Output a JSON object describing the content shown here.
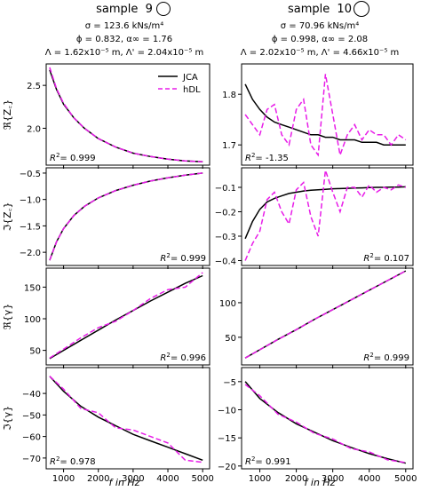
{
  "columns": [
    {
      "title": "sample",
      "number": "9",
      "params_line1": "σ = 123.6 kNs/m⁴",
      "params_line2": "ϕ = 0.832, α∞ = 1.76",
      "params_line3": "Λ = 1.62x10⁻⁵ m, Λ' = 2.04x10⁻⁵ m"
    },
    {
      "title": "sample",
      "number": "10",
      "params_line1": "σ = 70.96 kNs/m⁴",
      "params_line2": "ϕ = 0.998, α∞ = 2.08",
      "params_line3": "Λ = 2.02x10⁻⁵ m, Λ' = 4.66x10⁻⁵ m"
    }
  ],
  "xlabel": "f in Hz",
  "legend": {
    "items": [
      {
        "label": "JCA"
      },
      {
        "label": "hDL"
      }
    ],
    "placement": "upper-right of top-left panel"
  },
  "colors": {
    "JCA": "#000000",
    "hDL": "#e81ce8"
  },
  "chart_data": [
    {
      "type": "line",
      "panel": "ReZc-sample9",
      "ylabel": "ℜ{Z꜀}",
      "xlim": [
        500,
        5200
      ],
      "ylim": [
        1.57,
        2.75
      ],
      "xticks": [
        1000,
        2000,
        3000,
        4000,
        5000
      ],
      "yticks": [
        2.0,
        2.5
      ],
      "r2": "0.999",
      "r2_pos": "bottom-left",
      "x": [
        600,
        800,
        1000,
        1300,
        1600,
        2000,
        2500,
        3000,
        3500,
        4000,
        4500,
        5000
      ],
      "series": [
        {
          "name": "JCA",
          "values": [
            2.68,
            2.45,
            2.28,
            2.12,
            2.0,
            1.88,
            1.78,
            1.71,
            1.67,
            1.64,
            1.62,
            1.61
          ]
        },
        {
          "name": "hDL",
          "values": [
            2.71,
            2.46,
            2.29,
            2.12,
            2.0,
            1.88,
            1.78,
            1.71,
            1.67,
            1.64,
            1.62,
            1.61
          ]
        }
      ]
    },
    {
      "type": "line",
      "panel": "ReZc-sample10",
      "ylabel": "",
      "xlim": [
        500,
        5200
      ],
      "ylim": [
        1.66,
        1.86
      ],
      "xticks": [
        1000,
        2000,
        3000,
        4000,
        5000
      ],
      "yticks": [
        1.7,
        1.8
      ],
      "r2": "-1.35",
      "r2_pos": "bottom-left",
      "x": [
        600,
        800,
        1000,
        1200,
        1400,
        1600,
        1800,
        2000,
        2200,
        2400,
        2600,
        2800,
        3000,
        3200,
        3400,
        3600,
        3800,
        4000,
        4200,
        4400,
        4600,
        4800,
        5000
      ],
      "series": [
        {
          "name": "JCA",
          "values": [
            1.82,
            1.79,
            1.77,
            1.755,
            1.745,
            1.74,
            1.735,
            1.73,
            1.725,
            1.72,
            1.72,
            1.715,
            1.715,
            1.71,
            1.71,
            1.71,
            1.705,
            1.705,
            1.705,
            1.7,
            1.7,
            1.7,
            1.7
          ]
        },
        {
          "name": "hDL",
          "values": [
            1.76,
            1.74,
            1.72,
            1.77,
            1.78,
            1.72,
            1.7,
            1.77,
            1.79,
            1.7,
            1.68,
            1.84,
            1.76,
            1.68,
            1.72,
            1.74,
            1.71,
            1.73,
            1.72,
            1.72,
            1.7,
            1.72,
            1.71
          ]
        }
      ]
    },
    {
      "type": "line",
      "panel": "ImZc-sample9",
      "ylabel": "ℑ{Z꜀}",
      "xlim": [
        500,
        5200
      ],
      "ylim": [
        -2.25,
        -0.4
      ],
      "xticks": [
        1000,
        2000,
        3000,
        4000,
        5000
      ],
      "yticks": [
        -2.0,
        -1.5,
        -1.0,
        -0.5
      ],
      "r2": "0.999",
      "r2_pos": "bottom-right",
      "x": [
        600,
        800,
        1000,
        1300,
        1600,
        2000,
        2500,
        3000,
        3500,
        4000,
        4500,
        5000
      ],
      "series": [
        {
          "name": "JCA",
          "values": [
            -2.15,
            -1.8,
            -1.55,
            -1.3,
            -1.13,
            -0.97,
            -0.83,
            -0.73,
            -0.65,
            -0.59,
            -0.54,
            -0.5
          ]
        },
        {
          "name": "hDL",
          "values": [
            -2.15,
            -1.8,
            -1.55,
            -1.3,
            -1.13,
            -0.97,
            -0.83,
            -0.73,
            -0.65,
            -0.59,
            -0.54,
            -0.5
          ]
        }
      ]
    },
    {
      "type": "line",
      "panel": "ImZc-sample10",
      "ylabel": "",
      "xlim": [
        500,
        5200
      ],
      "ylim": [
        -0.42,
        -0.02
      ],
      "xticks": [
        1000,
        2000,
        3000,
        4000,
        5000
      ],
      "yticks": [
        -0.4,
        -0.3,
        -0.2,
        -0.1
      ],
      "r2": "0.107",
      "r2_pos": "bottom-right",
      "x": [
        600,
        800,
        1000,
        1200,
        1400,
        1600,
        1800,
        2000,
        2200,
        2400,
        2600,
        2800,
        3000,
        3200,
        3400,
        3600,
        3800,
        4000,
        4200,
        4400,
        4600,
        4800,
        5000
      ],
      "series": [
        {
          "name": "JCA",
          "values": [
            -0.31,
            -0.24,
            -0.19,
            -0.16,
            -0.145,
            -0.135,
            -0.125,
            -0.12,
            -0.115,
            -0.112,
            -0.11,
            -0.108,
            -0.106,
            -0.105,
            -0.104,
            -0.103,
            -0.102,
            -0.101,
            -0.1,
            -0.1,
            -0.099,
            -0.099,
            -0.098
          ]
        },
        {
          "name": "hDL",
          "values": [
            -0.4,
            -0.33,
            -0.28,
            -0.15,
            -0.12,
            -0.2,
            -0.25,
            -0.11,
            -0.08,
            -0.22,
            -0.3,
            -0.03,
            -0.12,
            -0.2,
            -0.1,
            -0.1,
            -0.14,
            -0.09,
            -0.12,
            -0.1,
            -0.11,
            -0.09,
            -0.1
          ]
        }
      ]
    },
    {
      "type": "line",
      "panel": "Regamma-sample9",
      "ylabel": "ℜ{γ}",
      "xlim": [
        500,
        5200
      ],
      "ylim": [
        27,
        180
      ],
      "xticks": [
        1000,
        2000,
        3000,
        4000,
        5000
      ],
      "yticks": [
        50,
        100,
        150
      ],
      "r2": "0.996",
      "r2_pos": "bottom-right",
      "x": [
        600,
        1000,
        1500,
        2000,
        2500,
        3000,
        3500,
        4000,
        4500,
        5000
      ],
      "series": [
        {
          "name": "JCA",
          "values": [
            37,
            50,
            66,
            82,
            98,
            113,
            128,
            142,
            156,
            168
          ]
        },
        {
          "name": "hDL",
          "values": [
            38,
            52,
            70,
            86,
            96,
            113,
            132,
            146,
            150,
            173
          ]
        }
      ]
    },
    {
      "type": "line",
      "panel": "Regamma-sample10",
      "ylabel": "",
      "xlim": [
        500,
        5200
      ],
      "ylim": [
        10,
        150
      ],
      "xticks": [
        1000,
        2000,
        3000,
        4000,
        5000
      ],
      "yticks": [
        50,
        100
      ],
      "r2": "0.999",
      "r2_pos": "bottom-right",
      "x": [
        600,
        1000,
        1500,
        2000,
        2500,
        3000,
        3500,
        4000,
        4500,
        5000
      ],
      "series": [
        {
          "name": "JCA",
          "values": [
            20,
            32,
            47,
            61,
            76,
            90,
            104,
            118,
            132,
            146
          ]
        },
        {
          "name": "hDL",
          "values": [
            20,
            32,
            47,
            61,
            76,
            90,
            104,
            118,
            132,
            146
          ]
        }
      ]
    },
    {
      "type": "line",
      "panel": "Imgamma-sample9",
      "ylabel": "ℑ{γ}",
      "xlim": [
        500,
        5200
      ],
      "ylim": [
        -75,
        -28
      ],
      "xticks": [
        1000,
        2000,
        3000,
        4000,
        5000
      ],
      "yticks": [
        -70,
        -60,
        -50,
        -40
      ],
      "r2": "0.978",
      "r2_pos": "bottom-left",
      "x": [
        600,
        1000,
        1500,
        2000,
        2500,
        3000,
        3500,
        4000,
        4500,
        5000
      ],
      "series": [
        {
          "name": "JCA",
          "values": [
            -32,
            -39,
            -46,
            -51,
            -55,
            -59,
            -62,
            -65,
            -68,
            -71
          ]
        },
        {
          "name": "hDL",
          "values": [
            -32,
            -38,
            -47,
            -49,
            -56,
            -57,
            -60,
            -63,
            -71,
            -72
          ]
        }
      ]
    },
    {
      "type": "line",
      "panel": "Imgamma-sample10",
      "ylabel": "",
      "xlim": [
        500,
        5200
      ],
      "ylim": [
        -20.5,
        -2.5
      ],
      "xticks": [
        1000,
        2000,
        3000,
        4000,
        5000
      ],
      "yticks": [
        -20,
        -15,
        -10,
        -5
      ],
      "r2": "0.991",
      "r2_pos": "bottom-left",
      "x": [
        600,
        1000,
        1500,
        2000,
        2500,
        3000,
        3500,
        4000,
        4500,
        5000
      ],
      "series": [
        {
          "name": "JCA",
          "values": [
            -5,
            -8,
            -10.5,
            -12.5,
            -14,
            -15.5,
            -16.7,
            -17.8,
            -18.7,
            -19.5
          ]
        },
        {
          "name": "hDL",
          "values": [
            -5.5,
            -7.5,
            -10.8,
            -12.2,
            -14.2,
            -15.2,
            -16.9,
            -17.5,
            -18.9,
            -19.4
          ]
        }
      ]
    }
  ]
}
